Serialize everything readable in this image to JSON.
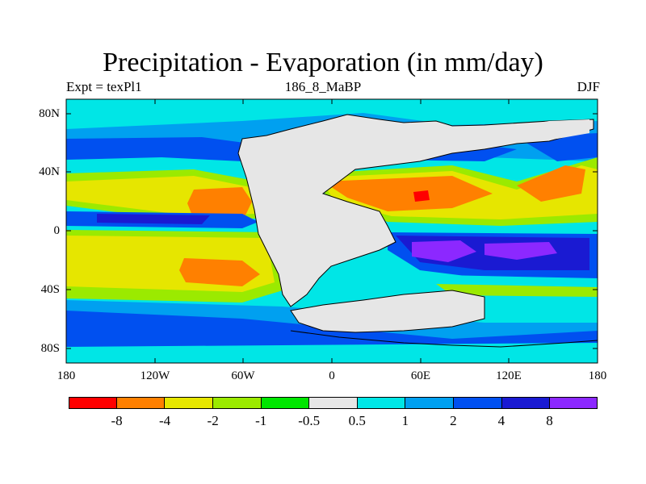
{
  "title": "Precipitation - Evaporation (in mm/day)",
  "subtitle_left": "Expt = texPl1",
  "subtitle_center": "186_8_MaBP",
  "subtitle_right": "DJF",
  "axes": {
    "x_ticks": [
      "180",
      "120W",
      "60W",
      "0",
      "60E",
      "120E",
      "180"
    ],
    "y_ticks": [
      "80N",
      "40N",
      "0",
      "40S",
      "80S"
    ]
  },
  "colorbar": {
    "colors": [
      "#ff0000",
      "#ff8000",
      "#e6e600",
      "#9bea00",
      "#00e600",
      "#e6e6e6",
      "#00e6e6",
      "#00a0f0",
      "#0050f0",
      "#1a1ad2",
      "#8c28ff"
    ],
    "labels": [
      "-8",
      "-4",
      "-2",
      "-1",
      "-0.5",
      "0.5",
      "1",
      "2",
      "4",
      "8"
    ]
  }
}
